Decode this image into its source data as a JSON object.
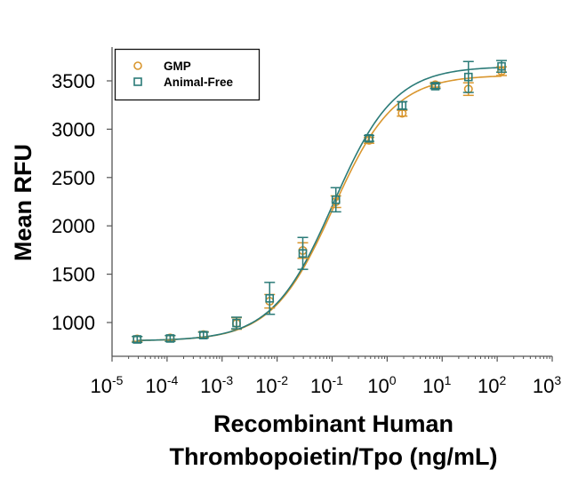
{
  "chart_data": {
    "type": "scatter",
    "title": "",
    "xlabel_lines": [
      "Recombinant Human",
      "Thrombopoietin/Tpo (ng/mL)"
    ],
    "ylabel": "Mean RFU",
    "xscale": "log",
    "xlim": [
      1e-05,
      1000
    ],
    "ylim": [
      700,
      3750
    ],
    "x_ticks": [
      {
        "base": "10",
        "exp": "-5",
        "value": 1e-05
      },
      {
        "base": "10",
        "exp": "-4",
        "value": 0.0001
      },
      {
        "base": "10",
        "exp": "-3",
        "value": 0.001
      },
      {
        "base": "10",
        "exp": "-2",
        "value": 0.01
      },
      {
        "base": "10",
        "exp": "-1",
        "value": 0.1
      },
      {
        "base": "10",
        "exp": "0",
        "value": 1
      },
      {
        "base": "10",
        "exp": "1",
        "value": 10
      },
      {
        "base": "10",
        "exp": "2",
        "value": 100
      },
      {
        "base": "10",
        "exp": "3",
        "value": 1000
      }
    ],
    "y_ticks": [
      1000,
      1500,
      2000,
      2500,
      3000,
      3500
    ],
    "y_tick_labels": [
      "1000",
      "1500",
      "2000",
      "2500",
      "3000",
      "3500"
    ],
    "grid": false,
    "legend_position": "top-left",
    "x": [
      2.86e-05,
      0.000114,
      0.000458,
      0.00183,
      0.00732,
      0.0293,
      0.117,
      0.469,
      1.875,
      7.5,
      30,
      120
    ],
    "series": [
      {
        "name": "GMP",
        "marker": "circle",
        "color": "#d9962e",
        "values": [
          830,
          840,
          875,
          990,
          1220,
          1745,
          2250,
          2885,
          3165,
          3460,
          3415,
          3600
        ],
        "errors": [
          25,
          25,
          30,
          60,
          70,
          80,
          60,
          30,
          30,
          25,
          65,
          45
        ],
        "fit": {
          "bottom": 810,
          "top": 3560,
          "ec50": 0.105,
          "hill": 0.78
        }
      },
      {
        "name": "Animal-Free",
        "marker": "square",
        "color": "#2b7b78",
        "values": [
          825,
          835,
          870,
          995,
          1250,
          1715,
          2270,
          2905,
          3245,
          3445,
          3540,
          3650
        ],
        "errors": [
          30,
          30,
          30,
          60,
          165,
          165,
          125,
          30,
          40,
          25,
          160,
          60
        ],
        "fit": {
          "bottom": 810,
          "top": 3650,
          "ec50": 0.105,
          "hill": 0.78
        }
      }
    ]
  }
}
